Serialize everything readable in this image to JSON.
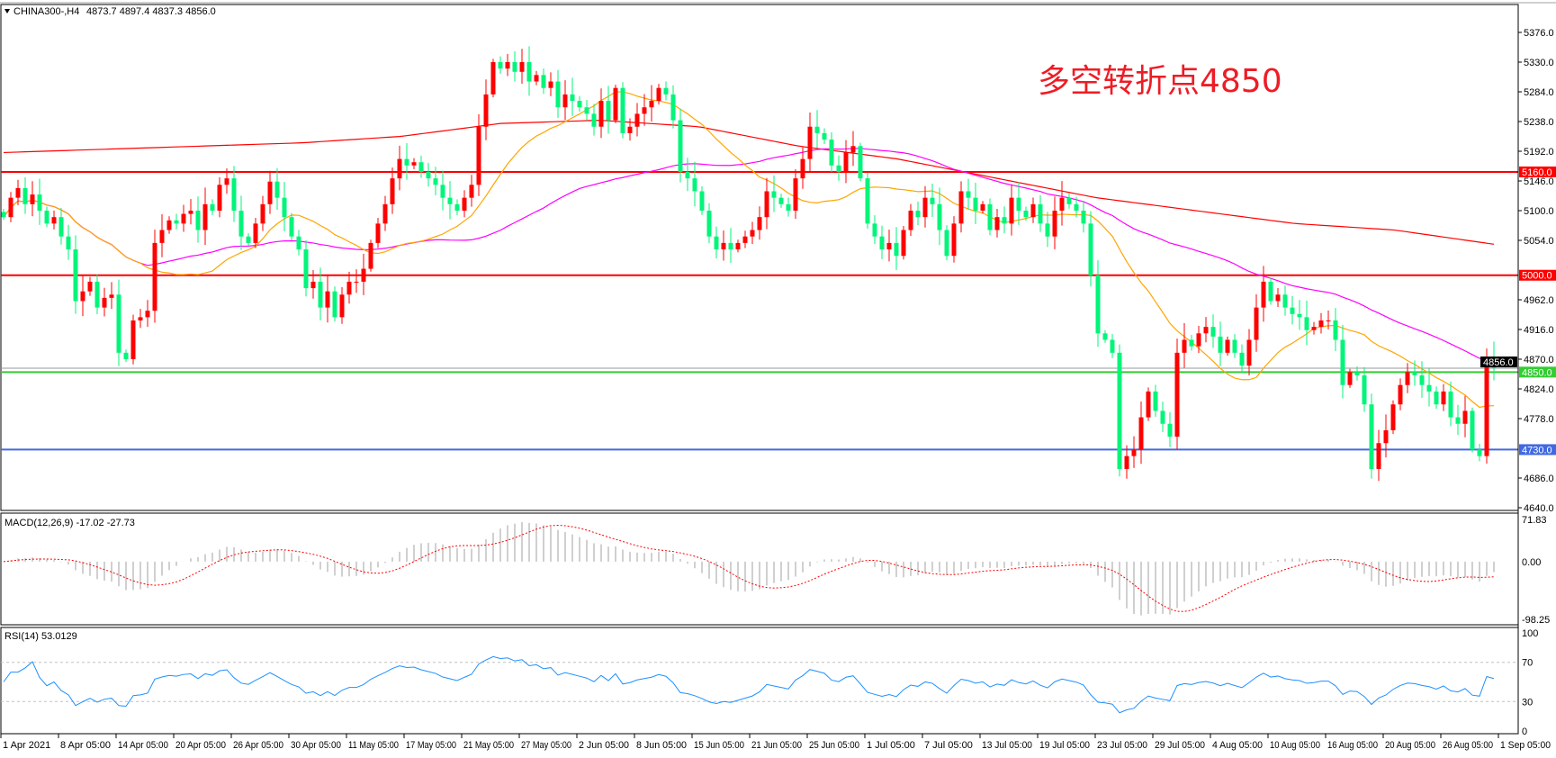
{
  "header": {
    "symbol_label": "CHINA300-,H4",
    "ohlc": "4873.7 4897.4 4837.3 4856.0"
  },
  "annotation": "多空转折点4850",
  "macd_label": "MACD(12,26,9) -17.02 -27.73",
  "rsi_label": "RSI(14) 53.0129",
  "colors": {
    "bull": "#ff0000",
    "bear": "#00f57a",
    "ma_fast": "#ffa500",
    "ma_mid": "#ff00ff",
    "ma_slow": "#ff0000",
    "macd_hist": "#c0c0c0",
    "macd_signal": "#ff0000",
    "rsi": "#1e90ff",
    "level_red": "#ff0000",
    "level_green": "#32cd32",
    "level_blue": "#4169e1"
  },
  "chart_data": {
    "type": "candlestick",
    "symbol": "CHINA300-",
    "timeframe": "H4",
    "last_bar": {
      "open": 4873.7,
      "high": 4897.4,
      "low": 4837.3,
      "close": 4856.0
    },
    "close": [
      5090,
      5120,
      5135,
      5110,
      5125,
      5100,
      5080,
      5090,
      5060,
      5040,
      4960,
      4975,
      4990,
      4950,
      4965,
      4970,
      4880,
      4870,
      4930,
      4935,
      4945,
      5050,
      5070,
      5085,
      5080,
      5095,
      5100,
      5070,
      5110,
      5100,
      5140,
      5150,
      5100,
      5060,
      5050,
      5080,
      5110,
      5145,
      5120,
      5090,
      5060,
      5040,
      4980,
      4990,
      4950,
      4975,
      4935,
      4970,
      4990,
      4990,
      5010,
      5050,
      5080,
      5110,
      5150,
      5180,
      5170,
      5175,
      5160,
      5150,
      5140,
      5120,
      5110,
      5100,
      5120,
      5140,
      5230,
      5280,
      5330,
      5320,
      5330,
      5315,
      5330,
      5300,
      5310,
      5290,
      5300,
      5260,
      5280,
      5270,
      5260,
      5250,
      5230,
      5270,
      5240,
      5290,
      5220,
      5230,
      5250,
      5260,
      5270,
      5290,
      5280,
      5240,
      5160,
      5150,
      5130,
      5100,
      5060,
      5040,
      5050,
      5040,
      5050,
      5060,
      5070,
      5090,
      5130,
      5120,
      5110,
      5100,
      5150,
      5180,
      5230,
      5220,
      5210,
      5170,
      5160,
      5190,
      5200,
      5150,
      5080,
      5060,
      5040,
      5050,
      5030,
      5070,
      5100,
      5090,
      5120,
      5110,
      5070,
      5030,
      5080,
      5130,
      5120,
      5100,
      5110,
      5070,
      5090,
      5080,
      5120,
      5100,
      5090,
      5110,
      5080,
      5060,
      5100,
      5120,
      5110,
      5100,
      5080,
      5000,
      4910,
      4900,
      4880,
      4700,
      4720,
      4730,
      4780,
      4820,
      4790,
      4770,
      4750,
      4880,
      4900,
      4890,
      4910,
      4920,
      4905,
      4880,
      4900,
      4880,
      4860,
      4900,
      4950,
      4990,
      4960,
      4970,
      4950,
      4940,
      4935,
      4915,
      4920,
      4930,
      4930,
      4900,
      4830,
      4850,
      4845,
      4800,
      4700,
      4740,
      4760,
      4800,
      4830,
      4850,
      4845,
      4830,
      4820,
      4800,
      4820,
      4780,
      4770,
      4790,
      4730,
      4720,
      4873.7,
      4856
    ],
    "ma_slow_trend": [
      5190,
      5195,
      5200,
      5205,
      5215,
      5235,
      5240,
      5230,
      5200,
      5180,
      5150,
      5120,
      5100,
      5080,
      5070,
      5048
    ],
    "price_axis": {
      "min": 4640,
      "max": 5376,
      "ticks": [
        "5376.0",
        "5330.0",
        "5284.0",
        "5238.0",
        "5192.0",
        "5146.0",
        "5100.0",
        "5054.0",
        "4962.0",
        "4916.0",
        "4870.0",
        "4824.0",
        "4778.0",
        "4686.0",
        "4640.0"
      ]
    },
    "levels": [
      {
        "value": 5160,
        "label": "5160.0",
        "color": "#ff0000"
      },
      {
        "value": 5000,
        "label": "5000.0",
        "color": "#ff0000"
      },
      {
        "value": 4850,
        "label": "4850.0",
        "color": "#32cd32"
      },
      {
        "value": 4730,
        "label": "4730.0",
        "color": "#4169e1"
      }
    ],
    "current_price": {
      "value": 4856.0,
      "label": "4856.0"
    },
    "macd_axis": {
      "max": 71.83,
      "min": -98.25,
      "ticks": [
        "71.83",
        "0.00",
        "-98.25"
      ]
    },
    "rsi_axis": {
      "ticks": [
        "100",
        "70",
        "30",
        "0"
      ],
      "levels": [
        70,
        30
      ]
    },
    "x_labels": [
      "1 Apr 2021",
      "8 Apr 05:00",
      "14 Apr 05:00",
      "20 Apr 05:00",
      "26 Apr 05:00",
      "30 Apr 05:00",
      "11 May 05:00",
      "17 May 05:00",
      "21 May 05:00",
      "27 May 05:00",
      "2 Jun 05:00",
      "8 Jun 05:00",
      "15 Jun 05:00",
      "21 Jun 05:00",
      "25 Jun 05:00",
      "1 Jul 05:00",
      "7 Jul 05:00",
      "13 Jul 05:00",
      "19 Jul 05:00",
      "23 Jul 05:00",
      "29 Jul 05:00",
      "4 Aug 05:00",
      "10 Aug 05:00",
      "16 Aug 05:00",
      "20 Aug 05:00",
      "26 Aug 05:00",
      "1 Sep 05:00"
    ]
  }
}
